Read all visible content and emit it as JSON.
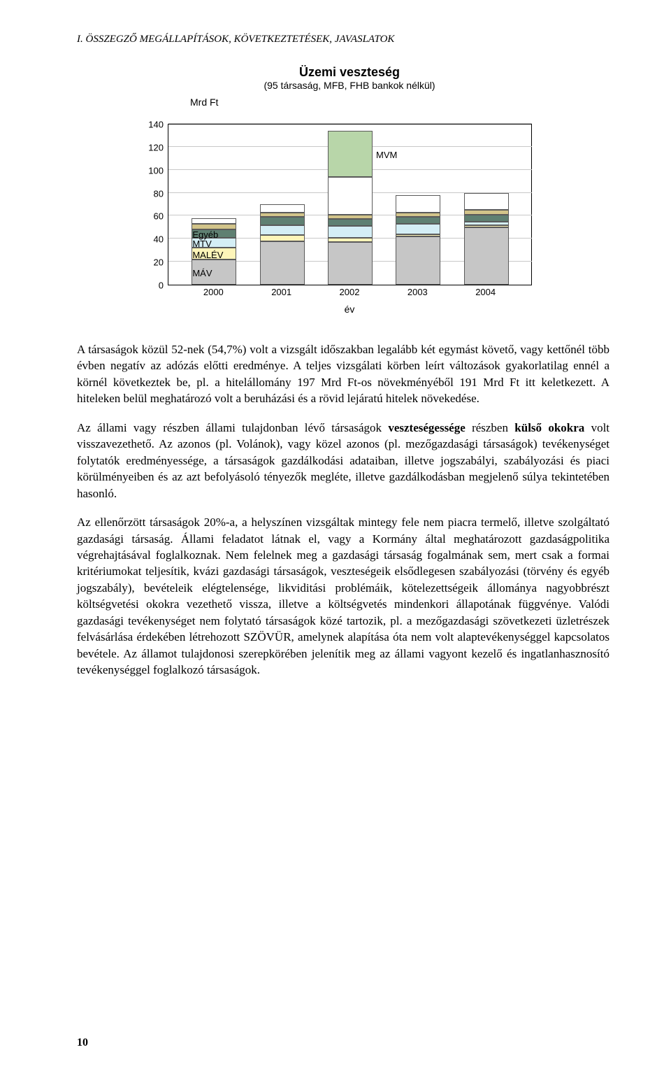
{
  "header": "I. ÖSSZEGZŐ MEGÁLLAPÍTÁSOK, KÖVETKEZTETÉSEK, JAVASLATOK",
  "chart": {
    "type": "stacked-bar",
    "title": "Üzemi veszteség",
    "subtitle": "(95 társaság, MFB, FHB bankok nélkül)",
    "y_axis_label": "Mrd Ft",
    "x_axis_label": "év",
    "ylim": [
      0,
      140
    ],
    "ytick_step": 20,
    "yticks": [
      0,
      20,
      40,
      60,
      80,
      100,
      120,
      140
    ],
    "categories": [
      "2000",
      "2001",
      "2002",
      "2003",
      "2004"
    ],
    "series": [
      "MÁV",
      "MALÉV",
      "MTV",
      "Egyéb",
      "extra1",
      "extra2",
      "MVM"
    ],
    "colors": {
      "MÁV": "#c6c6c6",
      "MALÉV": "#fef5b9",
      "MTV": "#d4eef5",
      "Egyéb": "#5f8072",
      "extra1": "#d2c48a",
      "extra2": "#ffffff",
      "MVM": "#b8d6a9"
    },
    "stacks": {
      "2000": {
        "MÁV": 22,
        "MALÉV": 10,
        "MTV": 9,
        "Egyéb": 7,
        "extra1": 5,
        "extra2": 5,
        "MVM": 0
      },
      "2001": {
        "MÁV": 38,
        "MALÉV": 5,
        "MTV": 9,
        "Egyéb": 7,
        "extra1": 4,
        "extra2": 7,
        "MVM": 0
      },
      "2002": {
        "MÁV": 37,
        "MALÉV": 4,
        "MTV": 10,
        "Egyéb": 6,
        "extra1": 4,
        "extra2": 33,
        "MVM": 40
      },
      "2003": {
        "MÁV": 42,
        "MALÉV": 2,
        "MTV": 9,
        "Egyéb": 6,
        "extra1": 4,
        "extra2": 15,
        "MVM": 0
      },
      "2004": {
        "MÁV": 50,
        "MALÉV": 2,
        "MTV": 3,
        "Egyéb": 6,
        "extra1": 4,
        "extra2": 15,
        "MVM": 0
      }
    },
    "labels_on_chart": {
      "MÁV": "MÁV",
      "MALÉV": "MALÉV",
      "MTV": "MTV",
      "Egyéb": "Egyéb",
      "MVM": "MVM"
    },
    "background_color": "#ffffff",
    "grid_color": "#c8c8c8",
    "font_family": "Arial",
    "title_fontsize": 18,
    "label_fontsize": 14,
    "tick_fontsize": 13
  },
  "paragraphs": {
    "p1": "A társaságok közül 52-nek (54,7%) volt a vizsgált időszakban legalább két egymást követő, vagy kettőnél több évben negatív az adózás előtti eredménye. A teljes vizsgálati körben leírt változások gyakorlatilag ennél a körnél következtek be, pl. a hitelállomány 197 Mrd Ft-os növekményéből 191 Mrd Ft itt keletkezett. A hiteleken belül meghatározó volt a beruházási és a rövid lejáratú hitelek növekedése.",
    "p2_a": "Az állami vagy részben állami tulajdonban lévő társaságok ",
    "p2_bold1": "veszteségessége",
    "p2_b": " részben ",
    "p2_bold2": "külső okokra",
    "p2_c": " volt visszavezethető. Az azonos (pl. Volánok), vagy közel azonos (pl. mezőgazdasági társaságok) tevékenységet folytatók eredményessége, a társaságok gazdálkodási adataiban, illetve jogszabályi, szabályozási és piaci körülményeiben és az azt befolyásoló tényezők megléte, illetve gazdálkodásban megjelenő súlya tekintetében hasonló.",
    "p3": "Az ellenőrzött társaságok 20%-a, a helyszínen vizsgáltak mintegy fele nem piacra termelő, illetve szolgáltató gazdasági társaság. Állami feladatot látnak el, vagy a Kormány által meghatározott gazdaságpolitika végrehajtásával foglalkoznak. Nem felelnek meg a gazdasági társaság fogalmának sem, mert csak a formai kritériumokat teljesítik, kvázi gazdasági társaságok, veszteségeik elsődlegesen szabályozási (törvény és egyéb jogszabály), bevételeik elégtelensége, likviditási problémáik, kötelezettségeik állománya nagyobbrészt költségvetési okokra vezethető vissza, illetve a költségvetés mindenkori állapotának függvénye. Valódi gazdasági tevékenységet nem folytató társaságok közé tartozik, pl. a mezőgazdasági szövetkezeti üzletrészek felvásárlása érdekében létrehozott SZÖVÜR, amelynek alapítása óta nem volt alaptevékenységgel kapcsolatos bevétele. Az államot tulajdonosi szerepkörében jelenítik meg az állami vagyont kezelő és ingatlanhasznosító tevékenységgel foglalkozó társaságok."
  },
  "page_number": "10"
}
